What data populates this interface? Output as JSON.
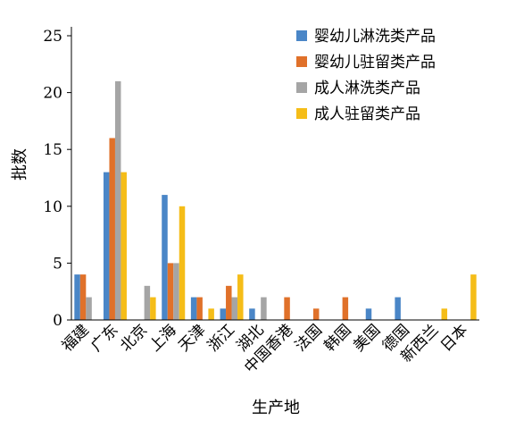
{
  "chart_data": {
    "type": "bar",
    "title": "",
    "xlabel": "生产地",
    "ylabel": "批数",
    "ylim": [
      0,
      25
    ],
    "yticks": [
      "0",
      "5",
      "10",
      "15",
      "20",
      "25"
    ],
    "grid": false,
    "legend_position": "top-right",
    "categories": [
      "福建",
      "广东",
      "北京",
      "上海",
      "天津",
      "浙江",
      "湖北",
      "中国香港",
      "法国",
      "韩国",
      "美国",
      "德国",
      "新西兰",
      "日本"
    ],
    "series": [
      {
        "name": "婴幼儿淋洗类产品",
        "color": "#4a86c7",
        "values": [
          4,
          13,
          0,
          11,
          2,
          1,
          1,
          0,
          0,
          0,
          1,
          2,
          0,
          0
        ]
      },
      {
        "name": "婴幼儿驻留类产品",
        "color": "#e0712a",
        "values": [
          4,
          16,
          0,
          5,
          2,
          3,
          0,
          2,
          1,
          2,
          0,
          0,
          0,
          0
        ]
      },
      {
        "name": "成人淋洗类产品",
        "color": "#a5a5a5",
        "values": [
          2,
          21,
          3,
          5,
          0,
          2,
          2,
          0,
          0,
          0,
          0,
          0,
          0,
          0
        ]
      },
      {
        "name": "成人驻留类产品",
        "color": "#f5bd18",
        "values": [
          0,
          13,
          2,
          10,
          1,
          4,
          0,
          0,
          0,
          0,
          0,
          0,
          1,
          4
        ]
      }
    ]
  }
}
